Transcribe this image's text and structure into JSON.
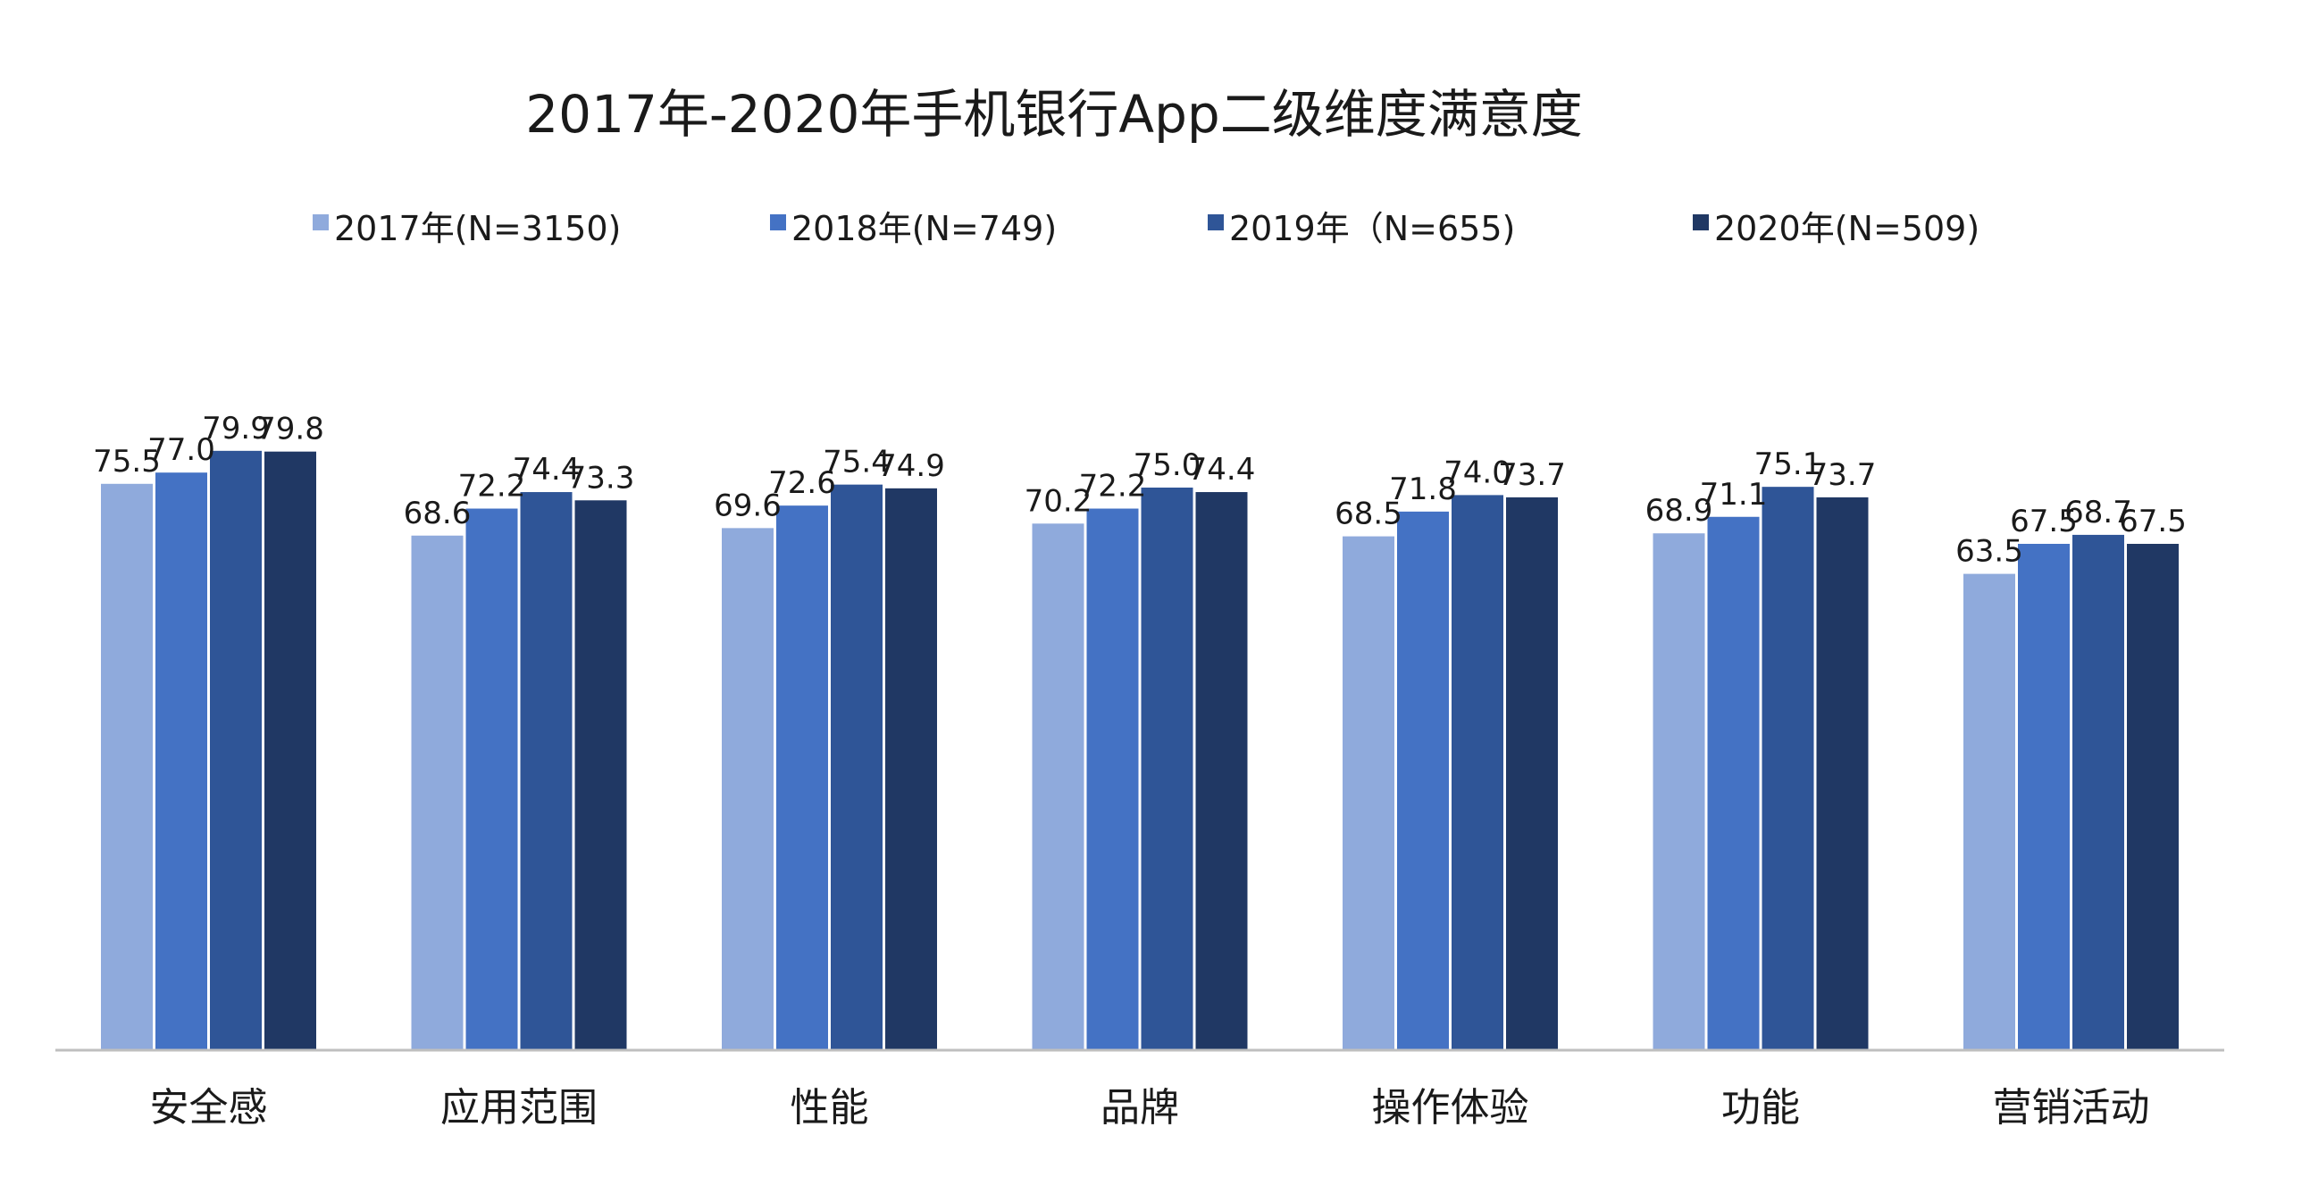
{
  "chart_data": {
    "type": "bar",
    "title": "2017年-2020年手机银行App二级维度满意度",
    "categories": [
      "安全感",
      "应用范围",
      "性能",
      "品牌",
      "操作体验",
      "功能",
      "营销活动"
    ],
    "series": [
      {
        "name": "2017年(N=3150)",
        "color": "#8faadc",
        "values": [
          75.5,
          68.6,
          69.6,
          70.2,
          68.5,
          68.9,
          63.5
        ],
        "labels": [
          "75.5",
          "68.6",
          "69.6",
          "70.2",
          "68.5",
          "68.9",
          "63.5"
        ]
      },
      {
        "name": "2018年(N=749)",
        "color": "#4472c4",
        "values": [
          77.0,
          72.2,
          72.6,
          72.2,
          71.8,
          71.1,
          67.5
        ],
        "labels": [
          "77.0",
          "72.2",
          "72.6",
          "72.2",
          "71.8",
          "71.1",
          "67.5"
        ]
      },
      {
        "name": "2019年（N=655)",
        "color": "#2f5597",
        "values": [
          79.9,
          74.4,
          75.4,
          75.0,
          74.0,
          75.1,
          68.7
        ],
        "labels": [
          "79.9",
          "74.4",
          "75.4",
          "75.0",
          "74.0",
          "75.1",
          "68.7"
        ]
      },
      {
        "name": "2020年(N=509)",
        "color": "#203864",
        "values": [
          79.8,
          73.3,
          74.9,
          74.4,
          73.7,
          73.7,
          67.5
        ],
        "labels": [
          "79.8",
          "73.3",
          "74.9",
          "74.4",
          "73.7",
          "73.7",
          "67.5"
        ]
      }
    ],
    "xlabel": "",
    "ylabel": "",
    "ylim": [
      0,
      80
    ],
    "grid": false,
    "legend_position": "top"
  }
}
